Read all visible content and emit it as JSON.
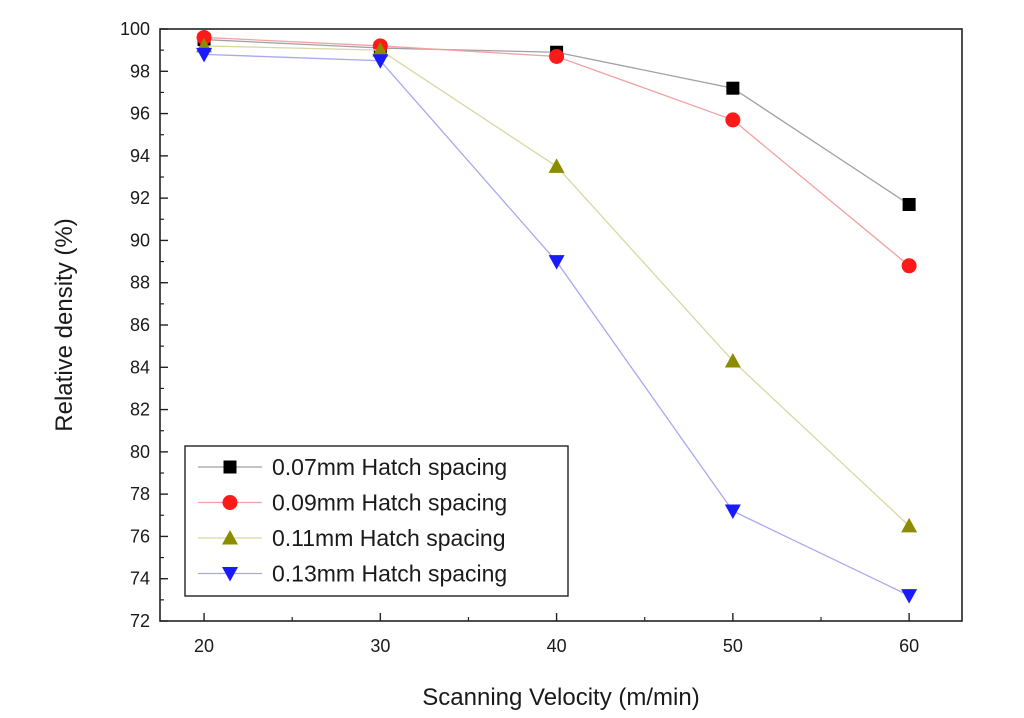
{
  "chart_data": {
    "type": "line",
    "title": "",
    "xlabel": "Scanning Velocity (m/min)",
    "ylabel": "Relative density (%)",
    "x": [
      20,
      30,
      40,
      50,
      60
    ],
    "xlim": [
      17.5,
      63
    ],
    "ylim": [
      72,
      100
    ],
    "xticks": [
      20,
      30,
      40,
      50,
      60
    ],
    "yticks": [
      72,
      74,
      76,
      78,
      80,
      82,
      84,
      86,
      88,
      90,
      92,
      94,
      96,
      98,
      100
    ],
    "grid": false,
    "legend_position": "bottom-left",
    "series": [
      {
        "name": "0.07mm  Hatch spacing",
        "marker": "square",
        "color": "#000000",
        "line_color": "#a0a0a0",
        "values": [
          99.5,
          99.1,
          98.9,
          97.2,
          91.7
        ]
      },
      {
        "name": "0.09mm  Hatch spacing",
        "marker": "circle",
        "color": "#ff1a1a",
        "line_color": "#f2a0a0",
        "values": [
          99.6,
          99.2,
          98.7,
          95.7,
          88.8
        ]
      },
      {
        "name": "0.11mm  Hatch spacing",
        "marker": "triangle-up",
        "color": "#8c8c00",
        "line_color": "#d8d8a0",
        "values": [
          99.2,
          99.0,
          93.5,
          84.3,
          76.5
        ]
      },
      {
        "name": "0.13mm  Hatch spacing",
        "marker": "triangle-down",
        "color": "#1a1aff",
        "line_color": "#a8a8f0",
        "values": [
          98.8,
          98.5,
          89.0,
          77.2,
          73.2
        ]
      }
    ]
  }
}
